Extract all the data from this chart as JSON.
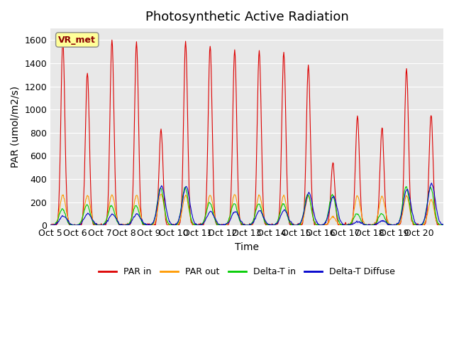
{
  "title": "Photosynthetic Active Radiation",
  "xlabel": "Time",
  "ylabel": "PAR (umol/m2/s)",
  "ylim": [
    0,
    1700
  ],
  "yticks": [
    0,
    200,
    400,
    600,
    800,
    1000,
    1200,
    1400,
    1600
  ],
  "xtick_positions": [
    0,
    1,
    2,
    3,
    4,
    5,
    6,
    7,
    8,
    9,
    10,
    11,
    12,
    13,
    14,
    15
  ],
  "xtick_labels": [
    "Oct 5",
    "Oct 6",
    "Oct 7",
    "Oct 8",
    "Oct 9",
    "Oct 10",
    "Oct 11",
    "Oct 12",
    "Oct 13",
    "Oct 14",
    "Oct 15",
    "Oct 16",
    "Oct 17",
    "Oct 18",
    "Oct 19",
    "Oct 20"
  ],
  "legend_entries": [
    "PAR in",
    "PAR out",
    "Delta-T in",
    "Delta-T Diffuse"
  ],
  "color_par_in": "#dd0000",
  "color_par_out": "#ff9900",
  "color_delta_t_in": "#00cc00",
  "color_delta_t_diffuse": "#0000cc",
  "bg_color": "#e8e8e8",
  "vr_met_box_color": "#ffff99",
  "vr_met_text_color": "#8b0000",
  "title_fontsize": 13,
  "label_fontsize": 10,
  "tick_fontsize": 9,
  "n_days": 16,
  "points_per_day": 48,
  "par_in_peaks": [
    1600,
    1320,
    1600,
    1580,
    830,
    1590,
    1560,
    1520,
    1510,
    1500,
    1380,
    540,
    940,
    840,
    1350,
    960
  ],
  "par_out_peaks": [
    260,
    260,
    265,
    260,
    270,
    260,
    260,
    265,
    260,
    255,
    250,
    75,
    255,
    250,
    255,
    220
  ],
  "delta_t_in_peaks": [
    140,
    175,
    170,
    170,
    320,
    325,
    195,
    190,
    185,
    185,
    270,
    265,
    100,
    100,
    335,
    330
  ],
  "delta_t_diff_peaks": [
    80,
    100,
    95,
    100,
    340,
    335,
    120,
    120,
    125,
    130,
    280,
    250,
    30,
    40,
    310,
    360
  ]
}
